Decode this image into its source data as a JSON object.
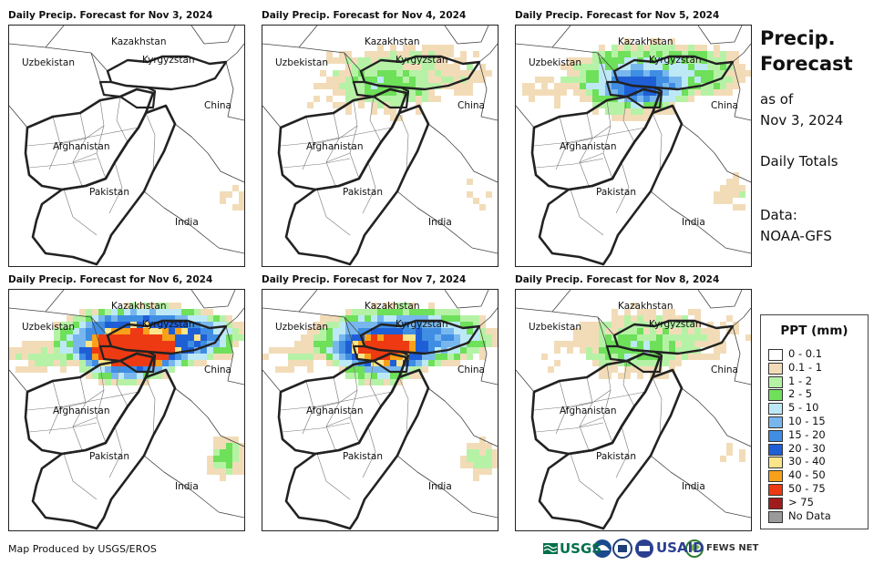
{
  "panels": [
    {
      "title": "Daily Precip. Forecast for Nov 3, 2024",
      "intensity": 0
    },
    {
      "title": "Daily Precip. Forecast for Nov 4, 2024",
      "intensity": 1
    },
    {
      "title": "Daily Precip. Forecast for Nov 5, 2024",
      "intensity": 2
    },
    {
      "title": "Daily Precip. Forecast for Nov 6, 2024",
      "intensity": 4
    },
    {
      "title": "Daily Precip. Forecast for Nov 7, 2024",
      "intensity": 3
    },
    {
      "title": "Daily Precip. Forecast for Nov 8, 2024",
      "intensity": 1
    }
  ],
  "map_labels": {
    "kazakhstan": "Kazakhstan",
    "uzbekistan": "Uzbekistan",
    "kyrgyzstan": "Kyrgyzstan",
    "china": "China",
    "afghanistan": "Afghanistan",
    "pakistan": "Pakistan",
    "india": "India"
  },
  "side": {
    "title_line1": "Precip.",
    "title_line2": "Forecast",
    "asof_line1": "as of",
    "asof_line2": "Nov 3, 2024",
    "totals": "Daily Totals",
    "data_line1": "Data:",
    "data_line2": "NOAA-GFS"
  },
  "legend": {
    "title": "PPT (mm)",
    "items": [
      {
        "label": "0 - 0.1",
        "color": "#ffffff"
      },
      {
        "label": "0.1 - 1",
        "color": "#f2dcb8"
      },
      {
        "label": "1 - 2",
        "color": "#b6f2a6"
      },
      {
        "label": "2 - 5",
        "color": "#6ee05a"
      },
      {
        "label": "5 - 10",
        "color": "#bde9f7"
      },
      {
        "label": "10 - 15",
        "color": "#78b7ee"
      },
      {
        "label": "15 - 20",
        "color": "#3f8ee3"
      },
      {
        "label": "20 - 30",
        "color": "#1f5fd6"
      },
      {
        "label": "30 - 40",
        "color": "#fbe58a"
      },
      {
        "label": "40 - 50",
        "color": "#f7a11a"
      },
      {
        "label": "50 - 75",
        "color": "#ee3a12"
      },
      {
        "label": "> 75",
        "color": "#a01c1c"
      },
      {
        "label": "No Data",
        "color": "#9a9a9a"
      }
    ]
  },
  "credit": "Map Produced by USGS/EROS",
  "logos": {
    "usgs": "USGS",
    "usaid": "USAID",
    "fewsnet": "FEWS NET"
  }
}
